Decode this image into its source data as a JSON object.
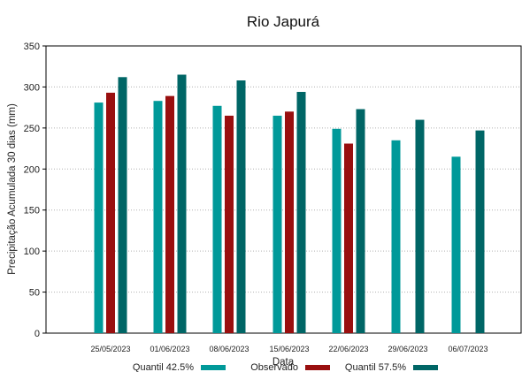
{
  "chart_data": {
    "type": "bar",
    "title": "Rio Japurá",
    "xlabel": "Data",
    "ylabel": "Precipitação Acumulada 30 dias (mm)",
    "ylim": [
      0,
      350
    ],
    "yticks": [
      0,
      50,
      100,
      150,
      200,
      250,
      300,
      350
    ],
    "grid": true,
    "legend_position": "bottom",
    "categories": [
      "25/05/2023",
      "01/06/2023",
      "08/06/2023",
      "15/06/2023",
      "22/06/2023",
      "29/06/2023",
      "06/07/2023"
    ],
    "series": [
      {
        "name": "Quantil 42.5%",
        "color": "#009999",
        "values": [
          281,
          283,
          277,
          265,
          249,
          235,
          215
        ]
      },
      {
        "name": "Observado",
        "color": "#990f0f",
        "values": [
          293,
          289,
          265,
          270,
          231,
          null,
          null
        ]
      },
      {
        "name": "Quantil 57.5%",
        "color": "#006666",
        "values": [
          312,
          315,
          308,
          294,
          273,
          260,
          247
        ]
      }
    ]
  }
}
